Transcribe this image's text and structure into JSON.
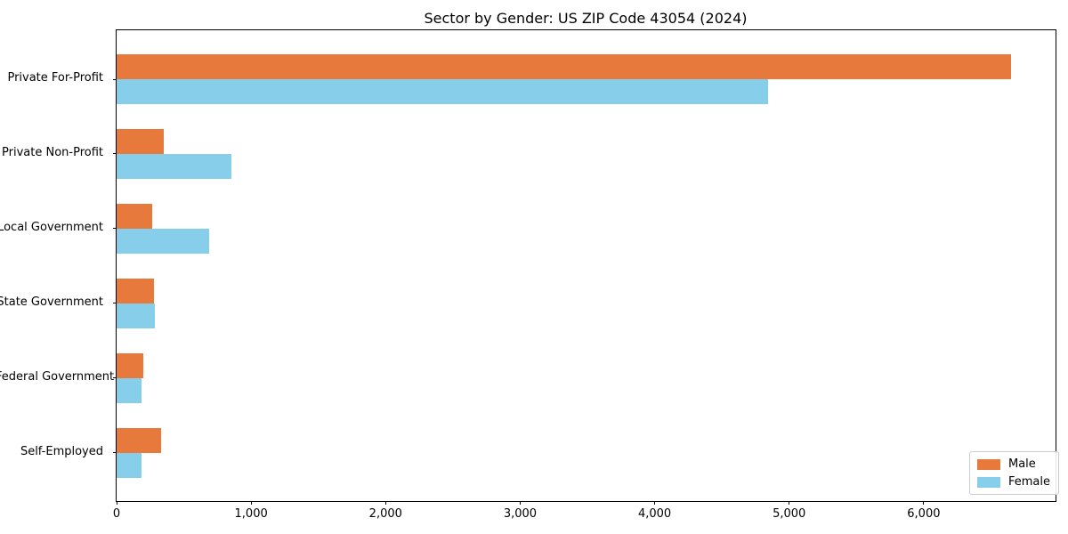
{
  "chart_data": {
    "type": "bar",
    "orientation": "horizontal",
    "title": "Sector by Gender: US ZIP Code 43054 (2024)",
    "categories": [
      "Private For-Profit",
      "Private Non-Profit",
      "Local Government",
      "State Government",
      "Federal Government",
      "Self-Employed"
    ],
    "series": [
      {
        "name": "Male",
        "color": "#e8793d",
        "values": [
          6650,
          350,
          265,
          280,
          200,
          330
        ]
      },
      {
        "name": "Female",
        "color": "#87ceeb",
        "values": [
          4840,
          855,
          690,
          283,
          186,
          185
        ]
      }
    ],
    "xlabel": "",
    "ylabel": "",
    "xlim": [
      0,
      6980
    ],
    "xticks": {
      "values": [
        0,
        1000,
        2000,
        3000,
        4000,
        5000,
        6000
      ],
      "labels": [
        "0",
        "1,000",
        "2,000",
        "3,000",
        "4,000",
        "5,000",
        "6,000"
      ]
    },
    "grid": false,
    "legend": {
      "position": "lower right"
    },
    "colors": {
      "background": "#ffffff",
      "axis": "#000000",
      "legend_border": "#cccccc"
    }
  }
}
